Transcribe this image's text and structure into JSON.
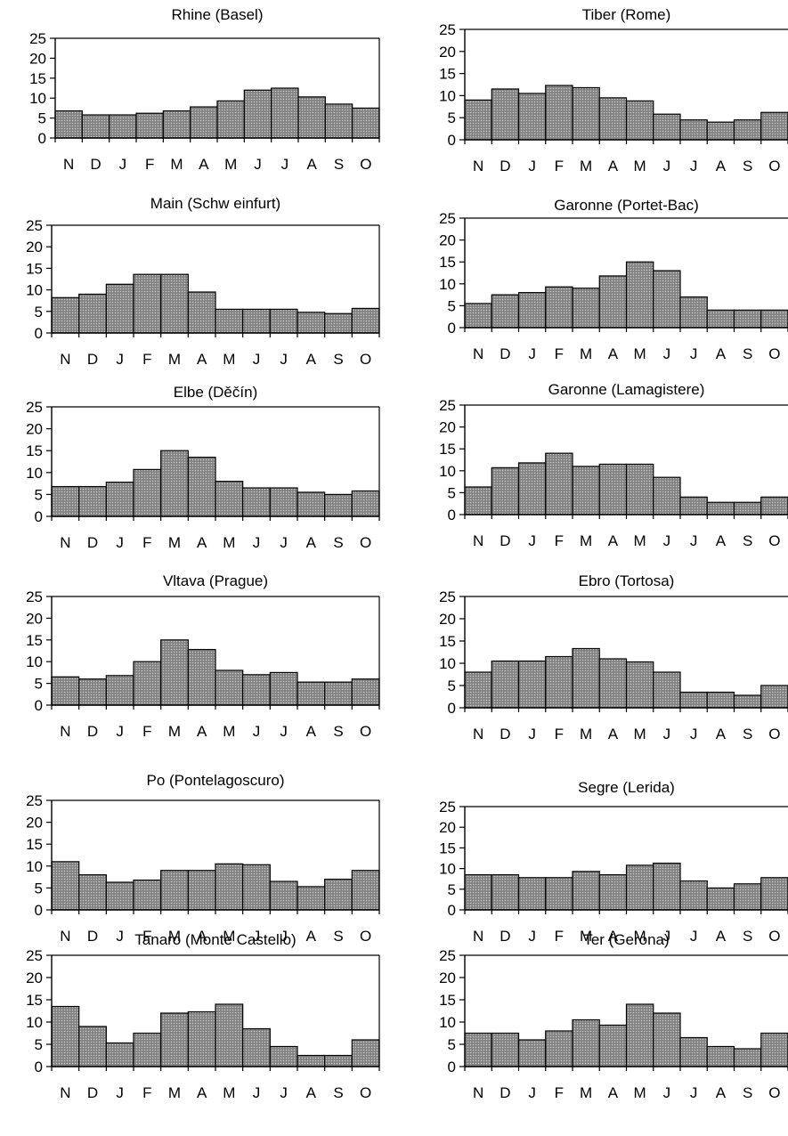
{
  "colors": {
    "bar_fill": "#8f8f8f",
    "bar_stroke": "#000000",
    "axis": "#000000",
    "background": "#ffffff"
  },
  "chart_data": [
    {
      "type": "bar",
      "title": "Rhine (Basel)",
      "categories": [
        "N",
        "D",
        "J",
        "F",
        "M",
        "A",
        "M",
        "J",
        "J",
        "A",
        "S",
        "O"
      ],
      "values": [
        6.8,
        5.8,
        5.8,
        6.2,
        6.8,
        7.8,
        9.3,
        12.0,
        12.5,
        10.3,
        8.5,
        7.5
      ],
      "ylim": [
        0,
        25
      ],
      "yticks": [
        "0",
        "5",
        "10",
        "15",
        "20",
        "25"
      ],
      "grid": false,
      "xlabel": "",
      "ylabel": ""
    },
    {
      "type": "bar",
      "title": "Tiber (Rome)",
      "categories": [
        "N",
        "D",
        "J",
        "F",
        "M",
        "A",
        "M",
        "J",
        "J",
        "A",
        "S",
        "O"
      ],
      "values": [
        9.0,
        11.5,
        10.5,
        12.3,
        11.8,
        9.5,
        8.8,
        5.8,
        4.5,
        4.0,
        4.5,
        6.2
      ],
      "ylim": [
        0,
        25
      ],
      "yticks": [
        "0",
        "5",
        "10",
        "15",
        "20",
        "25"
      ],
      "grid": false,
      "xlabel": "",
      "ylabel": ""
    },
    {
      "type": "bar",
      "title": "Main (Schw einfurt)",
      "categories": [
        "N",
        "D",
        "J",
        "F",
        "M",
        "A",
        "M",
        "J",
        "J",
        "A",
        "S",
        "O"
      ],
      "values": [
        8.2,
        9.0,
        11.3,
        13.6,
        13.6,
        9.5,
        5.5,
        5.5,
        5.5,
        4.8,
        4.5,
        5.7
      ],
      "ylim": [
        0,
        25
      ],
      "yticks": [
        "0",
        "5",
        "10",
        "15",
        "20",
        "25"
      ],
      "grid": false,
      "xlabel": "",
      "ylabel": ""
    },
    {
      "type": "bar",
      "title": "Garonne (Portet-Bac)",
      "categories": [
        "N",
        "D",
        "J",
        "F",
        "M",
        "A",
        "M",
        "J",
        "J",
        "A",
        "S",
        "O"
      ],
      "values": [
        5.5,
        7.5,
        8.0,
        9.3,
        9.0,
        11.8,
        15.0,
        13.0,
        7.0,
        4.0,
        4.0,
        4.0
      ],
      "ylim": [
        0,
        25
      ],
      "yticks": [
        "0",
        "5",
        "10",
        "15",
        "20",
        "25"
      ],
      "grid": false,
      "xlabel": "",
      "ylabel": ""
    },
    {
      "type": "bar",
      "title": "Elbe (Děčín)",
      "categories": [
        "N",
        "D",
        "J",
        "F",
        "M",
        "A",
        "M",
        "J",
        "J",
        "A",
        "S",
        "O"
      ],
      "values": [
        6.8,
        6.8,
        7.8,
        10.7,
        15.0,
        13.5,
        8.0,
        6.5,
        6.5,
        5.5,
        5.0,
        5.8
      ],
      "ylim": [
        0,
        25
      ],
      "yticks": [
        "0",
        "5",
        "10",
        "15",
        "20",
        "25"
      ],
      "grid": false,
      "xlabel": "",
      "ylabel": ""
    },
    {
      "type": "bar",
      "title": "Garonne (Lamagistere)",
      "categories": [
        "N",
        "D",
        "J",
        "F",
        "M",
        "A",
        "M",
        "J",
        "J",
        "A",
        "S",
        "O"
      ],
      "values": [
        6.3,
        10.7,
        11.8,
        14.0,
        11.0,
        11.5,
        11.5,
        8.5,
        4.0,
        2.8,
        2.8,
        4.0
      ],
      "ylim": [
        0,
        25
      ],
      "yticks": [
        "0",
        "5",
        "10",
        "15",
        "20",
        "25"
      ],
      "grid": false,
      "xlabel": "",
      "ylabel": ""
    },
    {
      "type": "bar",
      "title": "Vltava (Prague)",
      "categories": [
        "N",
        "D",
        "J",
        "F",
        "M",
        "A",
        "M",
        "J",
        "J",
        "A",
        "S",
        "O"
      ],
      "values": [
        6.5,
        6.0,
        6.8,
        10.0,
        15.0,
        12.8,
        8.0,
        7.0,
        7.5,
        5.3,
        5.3,
        6.0
      ],
      "ylim": [
        0,
        25
      ],
      "yticks": [
        "0",
        "5",
        "10",
        "15",
        "20",
        "25"
      ],
      "grid": false,
      "xlabel": "",
      "ylabel": ""
    },
    {
      "type": "bar",
      "title": "Ebro (Tortosa)",
      "categories": [
        "N",
        "D",
        "J",
        "F",
        "M",
        "A",
        "M",
        "J",
        "J",
        "A",
        "S",
        "O"
      ],
      "values": [
        8.0,
        10.5,
        10.5,
        11.5,
        13.3,
        11.0,
        10.3,
        8.0,
        3.5,
        3.5,
        2.8,
        5.0
      ],
      "ylim": [
        0,
        25
      ],
      "yticks": [
        "0",
        "5",
        "10",
        "15",
        "20",
        "25"
      ],
      "grid": false,
      "xlabel": "",
      "ylabel": ""
    },
    {
      "type": "bar",
      "title": "Po (Pontelagoscuro)",
      "categories": [
        "N",
        "D",
        "J",
        "F",
        "M",
        "A",
        "M",
        "J",
        "J",
        "A",
        "S",
        "O"
      ],
      "values": [
        11.0,
        8.0,
        6.3,
        6.8,
        9.0,
        9.0,
        10.5,
        10.3,
        6.5,
        5.3,
        7.0,
        9.0
      ],
      "ylim": [
        0,
        25
      ],
      "yticks": [
        "0",
        "5",
        "10",
        "15",
        "20",
        "25"
      ],
      "grid": false,
      "xlabel": "",
      "ylabel": ""
    },
    {
      "type": "bar",
      "title": "Segre (Lerida)",
      "categories": [
        "N",
        "D",
        "J",
        "F",
        "M",
        "A",
        "M",
        "J",
        "J",
        "A",
        "S",
        "O"
      ],
      "values": [
        8.5,
        8.5,
        7.8,
        7.8,
        9.3,
        8.5,
        10.8,
        11.3,
        7.0,
        5.3,
        6.3,
        7.8
      ],
      "ylim": [
        0,
        25
      ],
      "yticks": [
        "0",
        "5",
        "10",
        "15",
        "20",
        "25"
      ],
      "grid": false,
      "xlabel": "",
      "ylabel": ""
    },
    {
      "type": "bar",
      "title": "Tanaro (Monte Castello)",
      "categories": [
        "N",
        "D",
        "J",
        "F",
        "M",
        "A",
        "M",
        "J",
        "J",
        "A",
        "S",
        "O"
      ],
      "values": [
        13.5,
        9.0,
        5.3,
        7.5,
        12.0,
        12.3,
        14.0,
        8.5,
        4.5,
        2.5,
        2.5,
        6.0
      ],
      "ylim": [
        0,
        25
      ],
      "yticks": [
        "0",
        "5",
        "10",
        "15",
        "20",
        "25"
      ],
      "grid": false,
      "xlabel": "",
      "ylabel": ""
    },
    {
      "type": "bar",
      "title": "Ter (Gerona)",
      "categories": [
        "N",
        "D",
        "J",
        "F",
        "M",
        "A",
        "M",
        "J",
        "J",
        "A",
        "S",
        "O"
      ],
      "values": [
        7.5,
        7.5,
        6.0,
        8.0,
        10.5,
        9.3,
        14.0,
        12.0,
        6.5,
        4.5,
        4.0,
        7.5
      ],
      "ylim": [
        0,
        25
      ],
      "yticks": [
        "0",
        "5",
        "10",
        "15",
        "20",
        "25"
      ],
      "grid": false,
      "xlabel": "",
      "ylabel": ""
    }
  ]
}
